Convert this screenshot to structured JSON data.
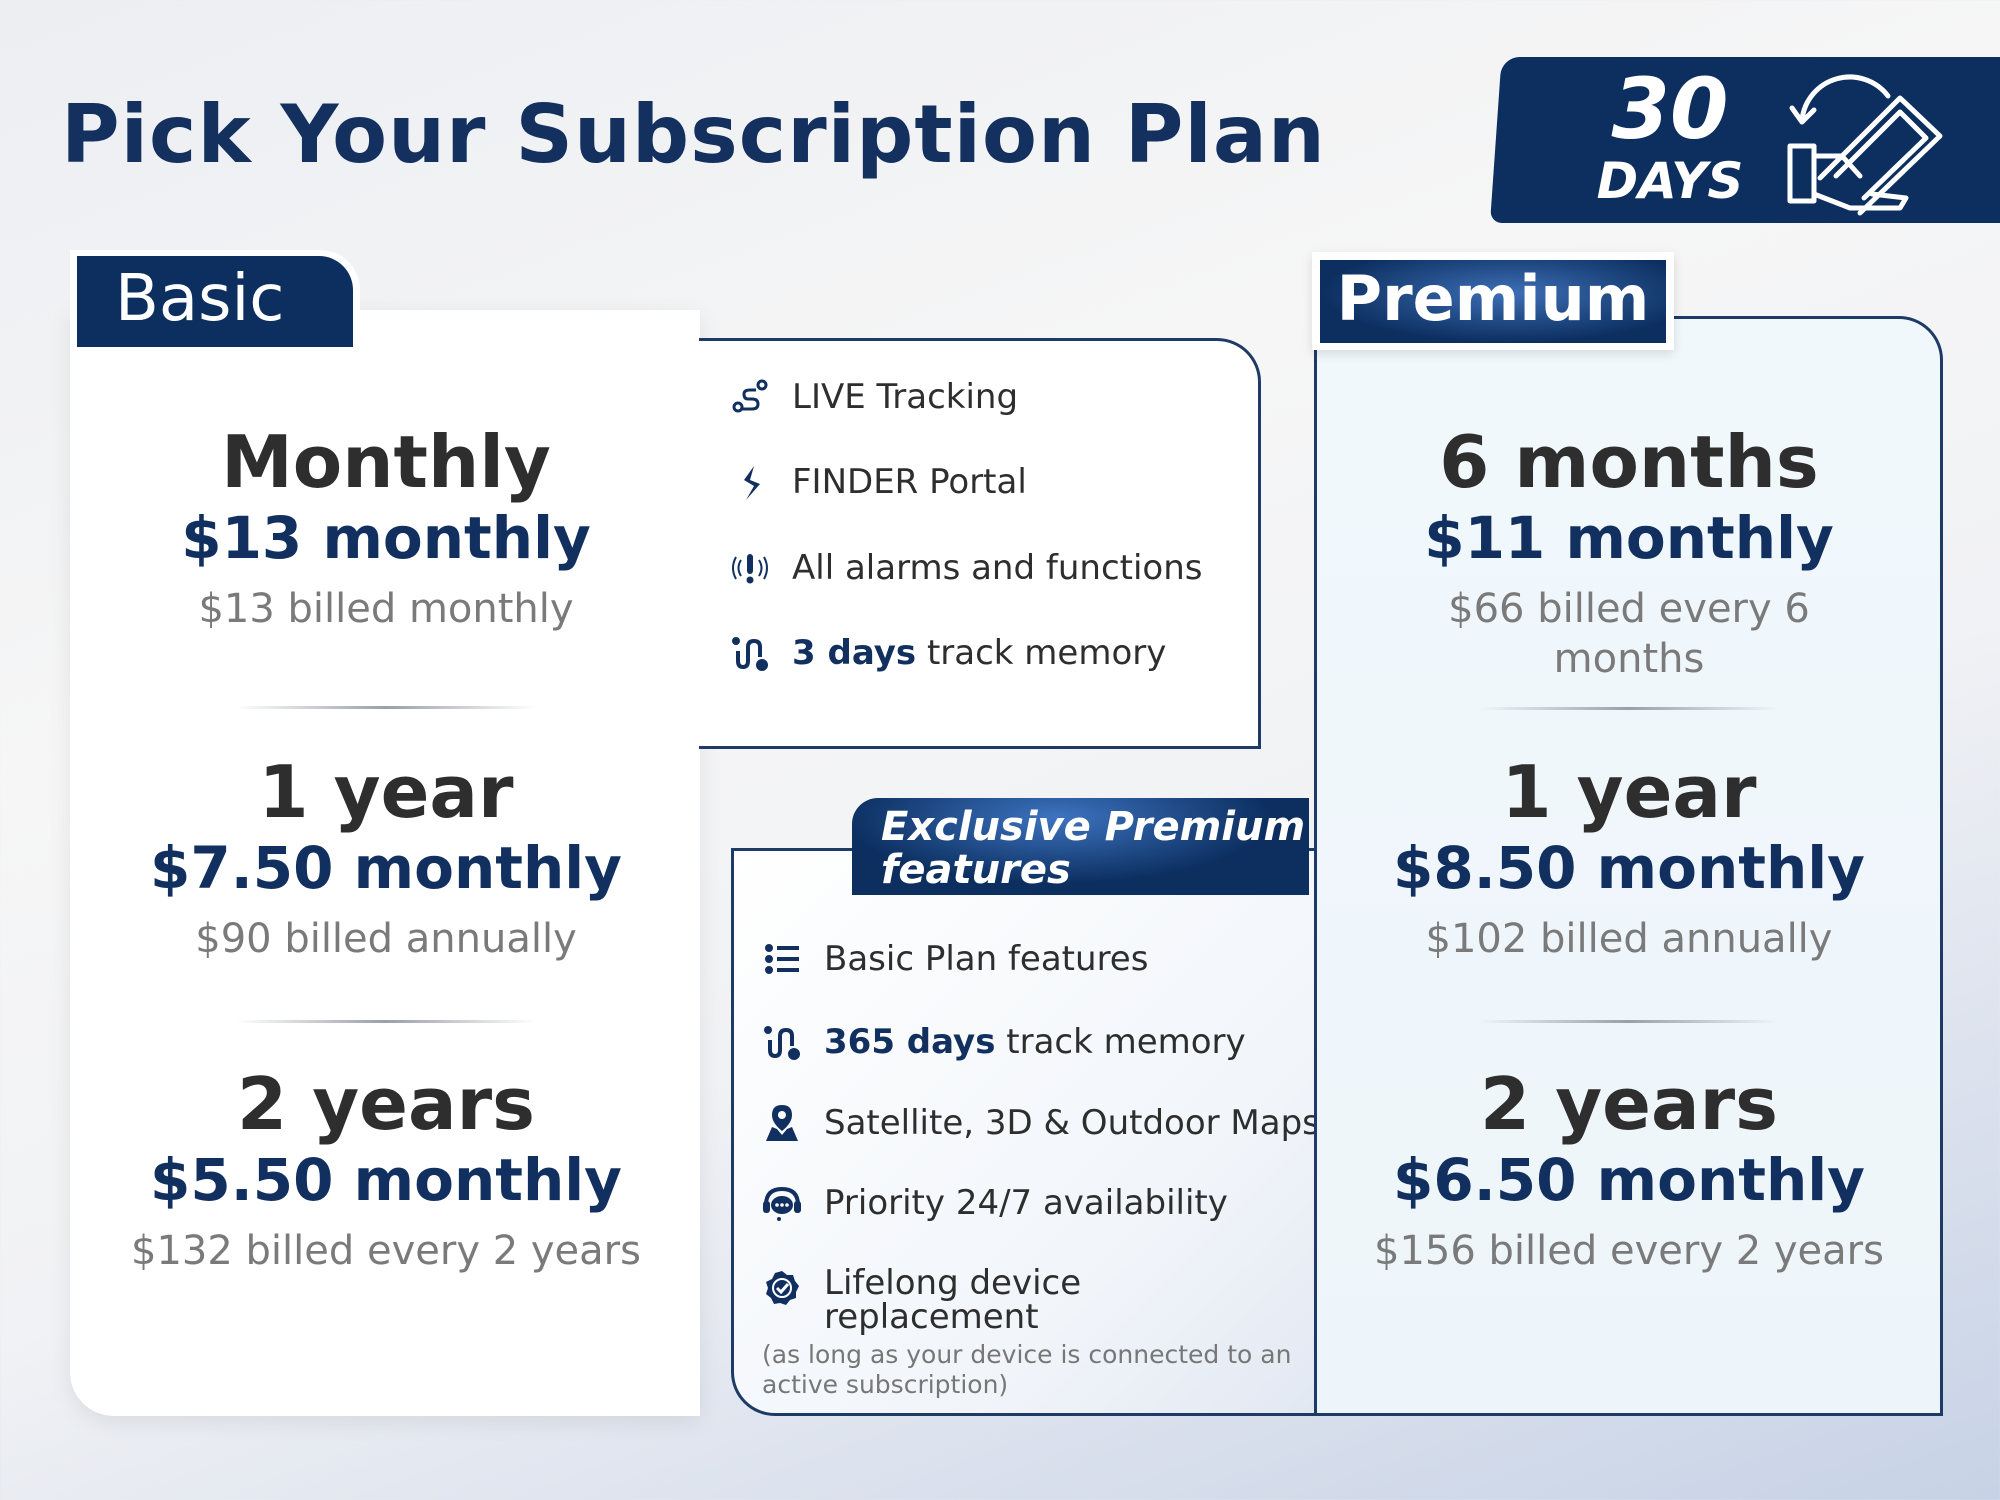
{
  "title": "Pick Your Subscription Plan",
  "guarantee_badge": {
    "number": "30",
    "unit": "DAYS",
    "icon": "money-back-hand-icon"
  },
  "colors": {
    "navy": "#0c2f60",
    "price": "#12305f",
    "billed": "#7a7a7a"
  },
  "basic": {
    "label": "Basic",
    "plans": [
      {
        "period": "Monthly",
        "price": "$13 monthly",
        "billed": "$13 billed monthly"
      },
      {
        "period": "1 year",
        "price": "$7.50 monthly",
        "billed": "$90 billed annually"
      },
      {
        "period": "2 years",
        "price": "$5.50 monthly",
        "billed": "$132 billed every 2 years"
      }
    ],
    "features": [
      {
        "icon": "route-pin-icon",
        "text": "LIVE Tracking"
      },
      {
        "icon": "finder-logo-icon",
        "text": "FINDER Portal"
      },
      {
        "icon": "alarm-icon",
        "text": "All alarms and functions"
      },
      {
        "icon": "track-path-icon",
        "highlight": "3 days",
        "text": " track memory"
      }
    ]
  },
  "exclusive": {
    "title_line1": "Exclusive Premium",
    "title_line2": "features",
    "features": [
      {
        "icon": "list-icon",
        "text": "Basic Plan features"
      },
      {
        "icon": "track-path-icon",
        "highlight": "365 days",
        "text": " track memory"
      },
      {
        "icon": "map-pin-icon",
        "text": "Satellite, 3D & Outdoor Maps"
      },
      {
        "icon": "support-chat-icon",
        "text": "Priority 24/7 availability"
      },
      {
        "icon": "verified-badge-icon",
        "text": "Lifelong device replacement"
      }
    ],
    "note": "(as long as your device is connected to an active subscription)"
  },
  "premium": {
    "label": "Premium",
    "plans": [
      {
        "period": "6 months",
        "price": "$11 monthly",
        "billed": "$66 billed every 6 months"
      },
      {
        "period": "1 year",
        "price": "$8.50 monthly",
        "billed": "$102 billed annually"
      },
      {
        "period": "2 years",
        "price": "$6.50 monthly",
        "billed": "$156 billed every 2 years"
      }
    ]
  }
}
